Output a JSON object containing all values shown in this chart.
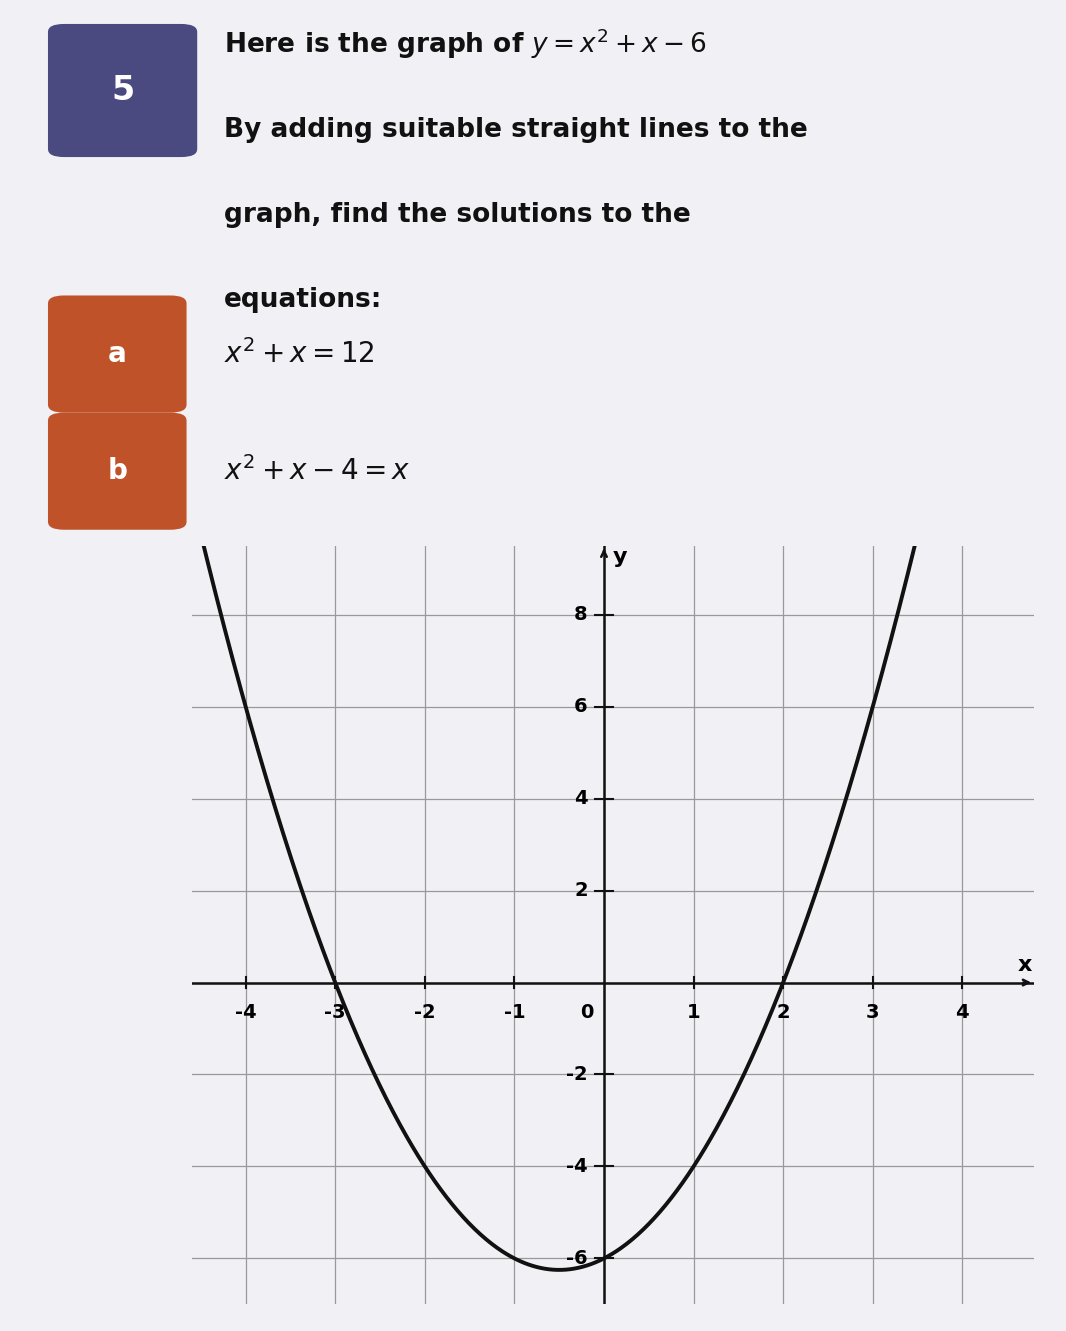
{
  "page_background": "#f0f0f5",
  "graph_background": "#e8eaf0",
  "question_number": "5",
  "question_number_bg": "#4a4a80",
  "question_text_line1": "Here is the graph of ",
  "question_text_eq": "y = x² + x − 6",
  "question_text_rest": "By adding suitable straight lines to the\ngraph, find the solutions to the\nequations:",
  "part_a_label": "a",
  "part_a_bg": "#c0522a",
  "part_a_eq": "x² + x = 12",
  "part_b_label": "b",
  "part_b_bg": "#c0522a",
  "part_b_eq": "x² + x − 4 = x",
  "x_min": -4.6,
  "x_max": 4.8,
  "y_min": -7.0,
  "y_max": 9.5,
  "x_ticks": [
    -4,
    -3,
    -2,
    -1,
    1,
    2,
    3,
    4
  ],
  "y_ticks": [
    -6,
    -4,
    -2,
    2,
    4,
    6,
    8
  ],
  "curve_color": "#111111",
  "curve_linewidth": 2.8,
  "grid_color": "#999999",
  "axis_color": "#111111",
  "font_size_tick": 14,
  "font_size_badge": 20,
  "font_size_text": 19
}
